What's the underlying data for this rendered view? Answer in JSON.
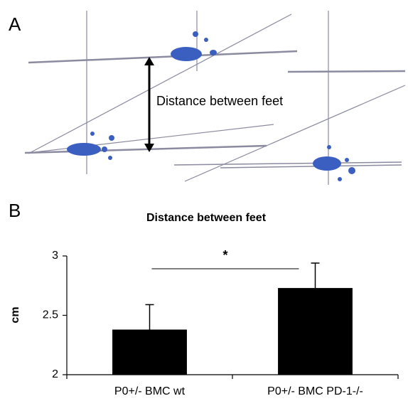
{
  "panel_labels": [
    "A",
    "B"
  ],
  "image": {
    "annotation": "Distance between feet"
  },
  "chart_data": {
    "type": "bar",
    "title": "Distance between feet",
    "y_label": "cm",
    "categories": [
      "P0+/- BMC wt",
      "P0+/- BMC PD-1-/-"
    ],
    "values": [
      2.38,
      2.73
    ],
    "errors": [
      0.21,
      0.21
    ],
    "color": "#000000",
    "ylim": [
      2,
      3
    ],
    "yticks": [
      2,
      2.5,
      3
    ],
    "significance": "*"
  }
}
